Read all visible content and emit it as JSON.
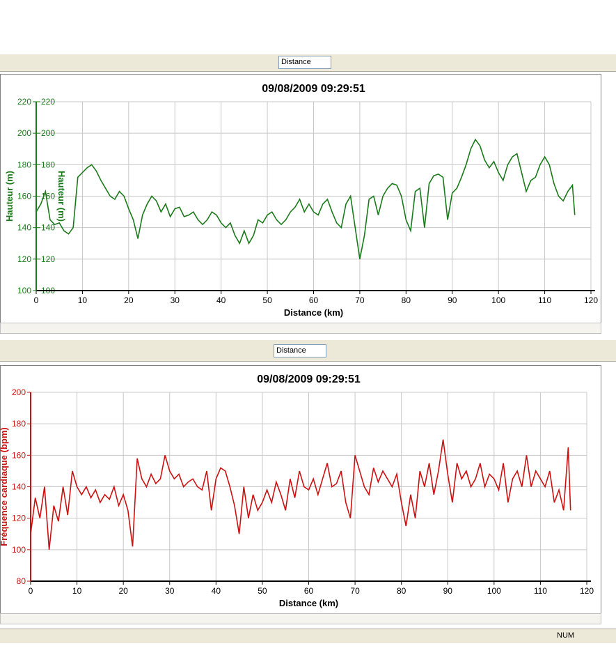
{
  "toolbars": [
    {
      "selector": "Distance"
    },
    {
      "selector": "Distance"
    }
  ],
  "status_bar": {
    "indicator": "NUM"
  },
  "chart_data": [
    {
      "type": "line",
      "title": "09/08/2009 09:29:51",
      "x_label": "Distance (km)",
      "y_label": "Hauteur (m)",
      "y2_label": "Hauteur (m)",
      "xlim": [
        0,
        120
      ],
      "xticks": [
        0,
        10,
        20,
        30,
        40,
        50,
        60,
        70,
        80,
        90,
        100,
        110,
        120
      ],
      "ylim": [
        100,
        220
      ],
      "yticks": [
        100,
        120,
        140,
        160,
        180,
        200,
        220
      ],
      "y2lim": [
        100,
        220
      ],
      "y2ticks": [
        100,
        120,
        140,
        160,
        180,
        200,
        220
      ],
      "grid": true,
      "axis_color": "#1a7a1a",
      "x": [
        0,
        1,
        2,
        3,
        4,
        5,
        6,
        7,
        8,
        9,
        10,
        11,
        12,
        13,
        14,
        15,
        16,
        17,
        18,
        19,
        20,
        21,
        22,
        23,
        24,
        25,
        26,
        27,
        28,
        29,
        30,
        31,
        32,
        33,
        34,
        35,
        36,
        37,
        38,
        39,
        40,
        41,
        42,
        43,
        44,
        45,
        46,
        47,
        48,
        49,
        50,
        51,
        52,
        53,
        54,
        55,
        56,
        57,
        58,
        59,
        60,
        61,
        62,
        63,
        64,
        65,
        66,
        67,
        68,
        69,
        70,
        71,
        72,
        73,
        74,
        75,
        76,
        77,
        78,
        79,
        80,
        81,
        82,
        83,
        84,
        85,
        86,
        87,
        88,
        89,
        90,
        91,
        92,
        93,
        94,
        95,
        96,
        97,
        98,
        99,
        100,
        101,
        102,
        103,
        104,
        105,
        106,
        107,
        108,
        109,
        110,
        111,
        112,
        113,
        114,
        115,
        116,
        116.5
      ],
      "series": [
        {
          "name": "Hauteur (m)",
          "color": "#1a7a1a",
          "values": [
            150,
            155,
            163,
            145,
            142,
            143,
            138,
            136,
            140,
            172,
            175,
            178,
            180,
            176,
            170,
            165,
            160,
            158,
            163,
            160,
            152,
            145,
            133,
            148,
            155,
            160,
            157,
            150,
            155,
            147,
            152,
            153,
            147,
            148,
            150,
            145,
            142,
            145,
            150,
            148,
            143,
            140,
            143,
            135,
            130,
            138,
            130,
            135,
            145,
            143,
            148,
            150,
            145,
            142,
            145,
            150,
            153,
            158,
            150,
            155,
            150,
            148,
            155,
            158,
            150,
            143,
            140,
            155,
            160,
            140,
            120,
            135,
            158,
            160,
            148,
            160,
            165,
            168,
            167,
            160,
            145,
            138,
            163,
            165,
            140,
            168,
            173,
            174,
            172,
            145,
            162,
            165,
            172,
            180,
            190,
            196,
            192,
            183,
            178,
            182,
            175,
            170,
            180,
            185,
            187,
            175,
            163,
            170,
            172,
            180,
            185,
            180,
            168,
            160,
            157,
            163,
            167,
            148
          ]
        }
      ]
    },
    {
      "type": "line",
      "title": "09/08/2009 09:29:51",
      "x_label": "Distance (km)",
      "y_label": "Fréquence cardiaque (bpm)",
      "xlim": [
        0,
        120
      ],
      "xticks": [
        0,
        10,
        20,
        30,
        40,
        50,
        60,
        70,
        80,
        90,
        100,
        110,
        120
      ],
      "ylim": [
        80,
        200
      ],
      "yticks": [
        80,
        100,
        120,
        140,
        160,
        180,
        200
      ],
      "grid": true,
      "axis_color": "#cc1111",
      "x": [
        0,
        1,
        2,
        3,
        4,
        5,
        6,
        7,
        8,
        9,
        10,
        11,
        12,
        13,
        14,
        15,
        16,
        17,
        18,
        19,
        20,
        21,
        22,
        23,
        24,
        25,
        26,
        27,
        28,
        29,
        30,
        31,
        32,
        33,
        34,
        35,
        36,
        37,
        38,
        39,
        40,
        41,
        42,
        43,
        44,
        45,
        46,
        47,
        48,
        49,
        50,
        51,
        52,
        53,
        54,
        55,
        56,
        57,
        58,
        59,
        60,
        61,
        62,
        63,
        64,
        65,
        66,
        67,
        68,
        69,
        70,
        71,
        72,
        73,
        74,
        75,
        76,
        77,
        78,
        79,
        80,
        81,
        82,
        83,
        84,
        85,
        86,
        87,
        88,
        89,
        90,
        91,
        92,
        93,
        94,
        95,
        96,
        97,
        98,
        99,
        100,
        101,
        102,
        103,
        104,
        105,
        106,
        107,
        108,
        109,
        110,
        111,
        112,
        113,
        114,
        115,
        116,
        116.5
      ],
      "series": [
        {
          "name": "Fréquence cardiaque (bpm)",
          "color": "#cc1111",
          "values": [
            110,
            133,
            120,
            140,
            100,
            128,
            118,
            140,
            122,
            150,
            140,
            135,
            140,
            133,
            138,
            130,
            135,
            132,
            140,
            128,
            135,
            125,
            102,
            158,
            145,
            140,
            148,
            142,
            145,
            160,
            150,
            145,
            148,
            140,
            143,
            145,
            140,
            138,
            150,
            125,
            145,
            152,
            150,
            140,
            128,
            110,
            140,
            120,
            135,
            125,
            130,
            138,
            130,
            143,
            135,
            125,
            145,
            133,
            150,
            140,
            138,
            145,
            135,
            145,
            155,
            140,
            142,
            150,
            130,
            120,
            160,
            150,
            140,
            135,
            152,
            143,
            150,
            145,
            140,
            148,
            130,
            115,
            135,
            120,
            150,
            140,
            155,
            135,
            150,
            170,
            148,
            130,
            155,
            145,
            150,
            140,
            145,
            155,
            140,
            148,
            145,
            138,
            155,
            130,
            145,
            150,
            140,
            160,
            140,
            150,
            145,
            140,
            150,
            130,
            138,
            125,
            165,
            125
          ]
        }
      ]
    }
  ]
}
